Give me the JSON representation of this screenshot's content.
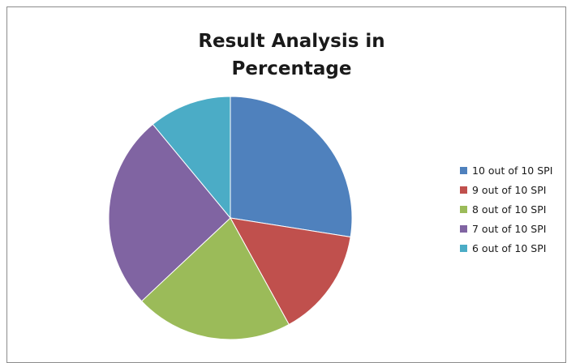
{
  "chart_data": {
    "type": "pie",
    "title_lines": [
      "Result Analysis in",
      "Percentage"
    ],
    "start_angle_deg": 0,
    "direction": "clockwise",
    "slices": [
      {
        "label": "10 out of 10 SPI",
        "value": 27.5,
        "color": "#4F81BD"
      },
      {
        "label": "9 out of 10 SPI",
        "value": 14.5,
        "color": "#C0504D"
      },
      {
        "label": "8 out of 10 SPI",
        "value": 21.0,
        "color": "#9BBB59"
      },
      {
        "label": "7 out of 10 SPI",
        "value": 26.0,
        "color": "#8064A2"
      },
      {
        "label": "6 out of 10 SPI",
        "value": 11.0,
        "color": "#4BACC6"
      }
    ],
    "legend_position": "right"
  }
}
